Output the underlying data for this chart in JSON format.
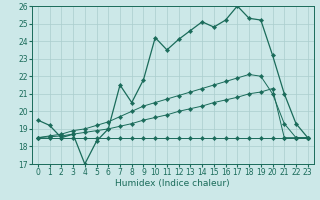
{
  "xlabel": "Humidex (Indice chaleur)",
  "xlim": [
    -0.5,
    23.5
  ],
  "ylim": [
    17,
    26
  ],
  "yticks": [
    17,
    18,
    19,
    20,
    21,
    22,
    23,
    24,
    25,
    26
  ],
  "xticks": [
    0,
    1,
    2,
    3,
    4,
    5,
    6,
    7,
    8,
    9,
    10,
    11,
    12,
    13,
    14,
    15,
    16,
    17,
    18,
    19,
    20,
    21,
    22,
    23
  ],
  "bg_color": "#cce8e8",
  "line_color": "#1a6b5a",
  "grid_color": "#aacece",
  "line1": [
    19.5,
    19.2,
    18.5,
    18.7,
    17.0,
    18.3,
    19.0,
    21.5,
    20.5,
    21.8,
    24.2,
    23.5,
    24.1,
    24.6,
    25.1,
    24.8,
    25.2,
    26.0,
    25.3,
    25.2,
    23.2,
    21.0,
    19.3,
    18.5
  ],
  "line2": [
    18.5,
    18.5,
    18.5,
    18.5,
    18.5,
    18.5,
    18.5,
    18.5,
    18.5,
    18.5,
    18.5,
    18.5,
    18.5,
    18.5,
    18.5,
    18.5,
    18.5,
    18.5,
    18.5,
    18.5,
    18.5,
    18.5,
    18.5,
    18.5
  ],
  "line3": [
    18.5,
    18.55,
    18.6,
    18.7,
    18.8,
    18.9,
    19.0,
    19.15,
    19.3,
    19.5,
    19.65,
    19.8,
    20.0,
    20.15,
    20.3,
    20.5,
    20.65,
    20.8,
    21.0,
    21.1,
    21.3,
    18.5,
    18.5,
    18.5
  ],
  "line4": [
    18.5,
    18.6,
    18.7,
    18.9,
    19.0,
    19.2,
    19.4,
    19.7,
    20.0,
    20.3,
    20.5,
    20.7,
    20.9,
    21.1,
    21.3,
    21.5,
    21.7,
    21.9,
    22.1,
    22.0,
    21.0,
    19.3,
    18.5,
    18.5
  ]
}
